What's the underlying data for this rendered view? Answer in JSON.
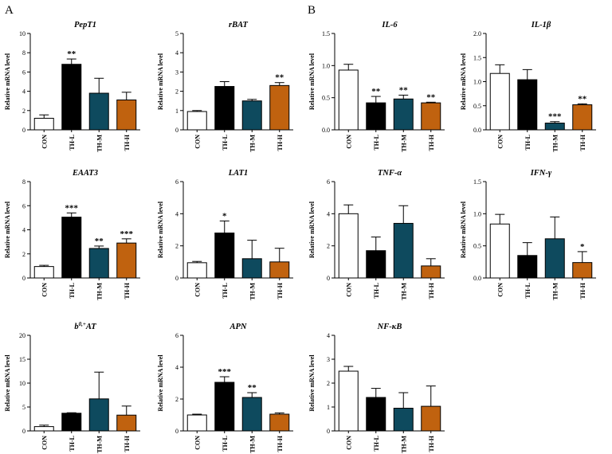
{
  "figure_labels": [
    "A",
    "B"
  ],
  "chart_data": [
    {
      "type": "bar",
      "panel": "A",
      "title": "PepT1",
      "ylabel": "Relative mRNA level",
      "categories": [
        "CON",
        "TH-L",
        "TH-M",
        "TH-H"
      ],
      "values": [
        1.2,
        6.8,
        3.8,
        3.1
      ],
      "errors": [
        0.35,
        0.55,
        1.55,
        0.8
      ],
      "significance": [
        "",
        "**",
        "",
        ""
      ],
      "ylim": [
        0,
        10
      ],
      "yticks": [
        "0",
        "2",
        "4",
        "6",
        "8",
        "10"
      ],
      "colors": [
        "#ffffff",
        "#000000",
        "#0e4a5e",
        "#c0620f"
      ]
    },
    {
      "type": "bar",
      "panel": "A",
      "title": "rBAT",
      "ylabel": "Relative mRNA level",
      "categories": [
        "CON",
        "TH-L",
        "TH-M",
        "TH-H"
      ],
      "values": [
        0.95,
        2.25,
        1.5,
        2.3
      ],
      "errors": [
        0.05,
        0.25,
        0.08,
        0.15
      ],
      "significance": [
        "",
        "",
        "",
        "**"
      ],
      "ylim": [
        0,
        5
      ],
      "yticks": [
        "0",
        "1",
        "2",
        "3",
        "4",
        "5"
      ],
      "colors": [
        "#ffffff",
        "#000000",
        "#0e4a5e",
        "#c0620f"
      ]
    },
    {
      "type": "bar",
      "panel": "B",
      "title": "IL-6",
      "ylabel": "Relative mRNA level",
      "categories": [
        "CON",
        "TH-L",
        "TH-M",
        "TH-H"
      ],
      "values": [
        0.93,
        0.42,
        0.48,
        0.42
      ],
      "errors": [
        0.09,
        0.1,
        0.06,
        0.01
      ],
      "significance": [
        "",
        "**",
        "**",
        "**"
      ],
      "ylim": [
        0,
        1.5
      ],
      "yticks": [
        "0.0",
        "0.5",
        "1.0",
        "1.5"
      ],
      "colors": [
        "#ffffff",
        "#000000",
        "#0e4a5e",
        "#c0620f"
      ]
    },
    {
      "type": "bar",
      "panel": "B",
      "title": "IL-1β",
      "ylabel": "Relative mRNA level",
      "categories": [
        "CON",
        "TH-L",
        "TH-M",
        "TH-H"
      ],
      "values": [
        1.17,
        1.04,
        0.14,
        0.52
      ],
      "errors": [
        0.18,
        0.21,
        0.03,
        0.02
      ],
      "significance": [
        "",
        "",
        "***",
        "**"
      ],
      "ylim": [
        0,
        2
      ],
      "yticks": [
        "0.0",
        "0.5",
        "1.0",
        "1.5",
        "2.0"
      ],
      "colors": [
        "#ffffff",
        "#000000",
        "#0e4a5e",
        "#c0620f"
      ]
    },
    {
      "type": "bar",
      "panel": "A",
      "title": "EAAT3",
      "ylabel": "Relative mRNA level",
      "categories": [
        "CON",
        "TH-L",
        "TH-M",
        "TH-H"
      ],
      "values": [
        0.95,
        5.05,
        2.45,
        2.9
      ],
      "errors": [
        0.1,
        0.35,
        0.2,
        0.35
      ],
      "significance": [
        "",
        "***",
        "**",
        "***"
      ],
      "ylim": [
        0,
        8
      ],
      "yticks": [
        "0",
        "2",
        "4",
        "6",
        "8"
      ],
      "colors": [
        "#ffffff",
        "#000000",
        "#0e4a5e",
        "#c0620f"
      ]
    },
    {
      "type": "bar",
      "panel": "A",
      "title": "LAT1",
      "ylabel": "Relative mRNA level",
      "categories": [
        "CON",
        "TH-L",
        "TH-M",
        "TH-H"
      ],
      "values": [
        0.95,
        2.8,
        1.2,
        1.0
      ],
      "errors": [
        0.08,
        0.75,
        1.15,
        0.85
      ],
      "significance": [
        "",
        "*",
        "",
        ""
      ],
      "ylim": [
        0,
        6
      ],
      "yticks": [
        "0",
        "2",
        "4",
        "6"
      ],
      "colors": [
        "#ffffff",
        "#000000",
        "#0e4a5e",
        "#c0620f"
      ]
    },
    {
      "type": "bar",
      "panel": "B",
      "title": "TNF-α",
      "ylabel": "Relative mRNA level",
      "categories": [
        "CON",
        "TH-L",
        "TH-M",
        "TH-H"
      ],
      "values": [
        4.0,
        1.7,
        3.4,
        0.75
      ],
      "errors": [
        0.55,
        0.85,
        1.1,
        0.45
      ],
      "significance": [
        "",
        "",
        "",
        ""
      ],
      "ylim": [
        0,
        6
      ],
      "yticks": [
        "0",
        "2",
        "4",
        "6"
      ],
      "colors": [
        "#ffffff",
        "#000000",
        "#0e4a5e",
        "#c0620f"
      ]
    },
    {
      "type": "bar",
      "panel": "B",
      "title": "IFN-γ",
      "ylabel": "Relative mRNA level",
      "categories": [
        "CON",
        "TH-L",
        "TH-M",
        "TH-H"
      ],
      "values": [
        0.84,
        0.35,
        0.61,
        0.24
      ],
      "errors": [
        0.15,
        0.2,
        0.34,
        0.17
      ],
      "significance": [
        "",
        "",
        "",
        "*"
      ],
      "ylim": [
        0,
        1.5
      ],
      "yticks": [
        "0.0",
        "0.5",
        "1.0",
        "1.5"
      ],
      "colors": [
        "#ffffff",
        "#000000",
        "#0e4a5e",
        "#c0620f"
      ]
    },
    {
      "type": "bar",
      "panel": "A",
      "title": "b0,+AT",
      "title_main": "b",
      "title_sup": "0,+",
      "title_tail": "AT",
      "ylabel": "Relative mRNA level",
      "categories": [
        "CON",
        "TH-L",
        "TH-M",
        "TH-H"
      ],
      "values": [
        0.9,
        3.7,
        6.7,
        3.3
      ],
      "errors": [
        0.3,
        0.1,
        5.6,
        1.9
      ],
      "significance": [
        "",
        "",
        "",
        ""
      ],
      "ylim": [
        0,
        20
      ],
      "yticks": [
        "0",
        "5",
        "10",
        "15",
        "20"
      ],
      "colors": [
        "#ffffff",
        "#000000",
        "#0e4a5e",
        "#c0620f"
      ]
    },
    {
      "type": "bar",
      "panel": "A",
      "title": "APN",
      "ylabel": "Relative mRNA level",
      "categories": [
        "CON",
        "TH-L",
        "TH-M",
        "TH-H"
      ],
      "values": [
        1.0,
        3.05,
        2.1,
        1.05
      ],
      "errors": [
        0.05,
        0.35,
        0.3,
        0.08
      ],
      "significance": [
        "",
        "***",
        "**",
        ""
      ],
      "ylim": [
        0,
        6
      ],
      "yticks": [
        "0",
        "2",
        "4",
        "6"
      ],
      "colors": [
        "#ffffff",
        "#000000",
        "#0e4a5e",
        "#c0620f"
      ]
    },
    {
      "type": "bar",
      "panel": "B",
      "title": "NF-κB",
      "ylabel": "Relative mRNA level",
      "categories": [
        "CON",
        "TH-L",
        "TH-M",
        "TH-H"
      ],
      "values": [
        2.5,
        1.4,
        0.95,
        1.03
      ],
      "errors": [
        0.2,
        0.38,
        0.65,
        0.85
      ],
      "significance": [
        "",
        "",
        "",
        ""
      ],
      "ylim": [
        0,
        4
      ],
      "yticks": [
        "0",
        "1",
        "2",
        "3",
        "4"
      ],
      "colors": [
        "#ffffff",
        "#000000",
        "#0e4a5e",
        "#c0620f"
      ]
    }
  ]
}
